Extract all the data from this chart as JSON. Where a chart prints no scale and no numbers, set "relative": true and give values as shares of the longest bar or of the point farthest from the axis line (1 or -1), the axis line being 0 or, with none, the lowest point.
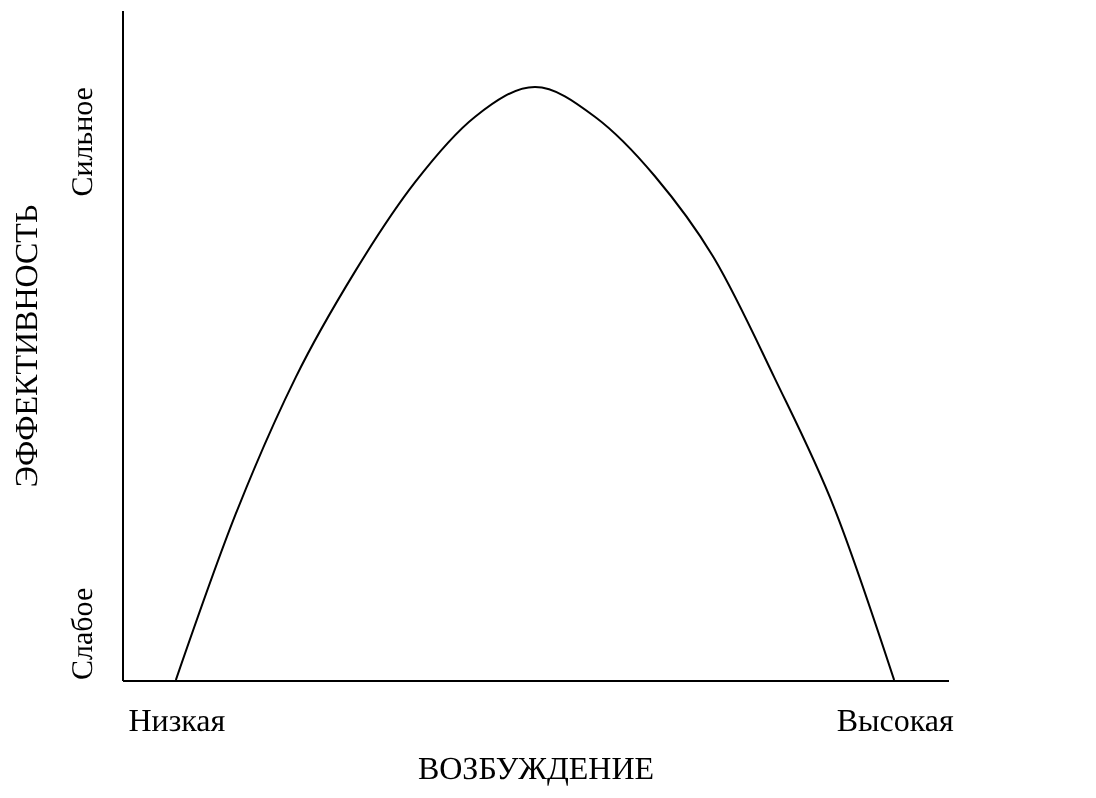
{
  "chart_data": {
    "type": "line",
    "relative": true,
    "xlabel": "ВОЗБУЖДЕНИЕ",
    "ylabel": "ЭФФЕКТИВНОСТЬ",
    "categories": [
      "Низкая",
      null,
      null,
      null,
      null,
      null,
      null,
      null,
      null,
      null,
      null,
      null,
      "Высокая"
    ],
    "series": [
      {
        "color": "#000000",
        "values": [
          0,
          0.28,
          0.51,
          0.69,
          0.84,
          0.95,
          1,
          0.95,
          0.85,
          0.71,
          0.51,
          0.29,
          0
        ]
      }
    ],
    "annotations": [
      "Слабое",
      "Сильное"
    ],
    "grid": false,
    "marker": "none",
    "line_style": "solid"
  }
}
